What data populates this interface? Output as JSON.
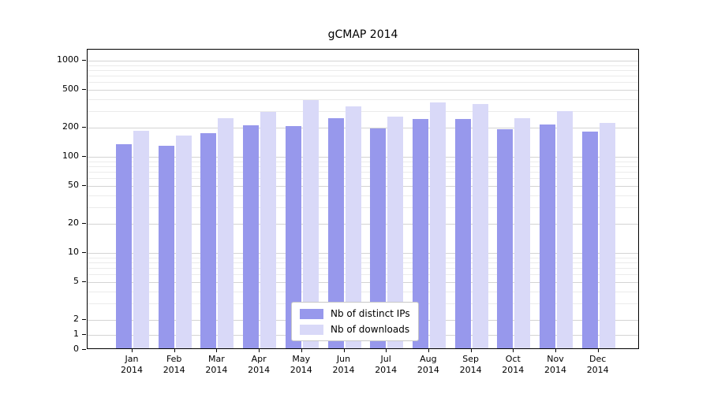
{
  "chart_data": {
    "type": "bar",
    "title": "gCMAP 2014",
    "categories": [
      "Jan",
      "Feb",
      "Mar",
      "Apr",
      "May",
      "Jun",
      "Jul",
      "Aug",
      "Sep",
      "Oct",
      "Nov",
      "Dec"
    ],
    "x_year_label": "2014",
    "series": [
      {
        "name": "Nb of distinct IPs",
        "color": "#9798ec",
        "values": [
          130,
          125,
          170,
          205,
          200,
          245,
          190,
          240,
          240,
          185,
          210,
          175
        ]
      },
      {
        "name": "Nb of downloads",
        "color": "#d9d9f8",
        "values": [
          180,
          160,
          245,
          285,
          375,
          320,
          250,
          355,
          340,
          245,
          290,
          215
        ]
      }
    ],
    "y_ticks": [
      0,
      1,
      2,
      5,
      10,
      20,
      50,
      100,
      200,
      500,
      1000
    ],
    "y_scale": "log",
    "ylim": [
      0,
      1300
    ],
    "grid": true,
    "legend_position": "lower center"
  },
  "colors": {
    "grid_major": "#d4d4d4",
    "grid_minor": "#ebebeb",
    "axis": "#000000",
    "background": "#ffffff"
  }
}
